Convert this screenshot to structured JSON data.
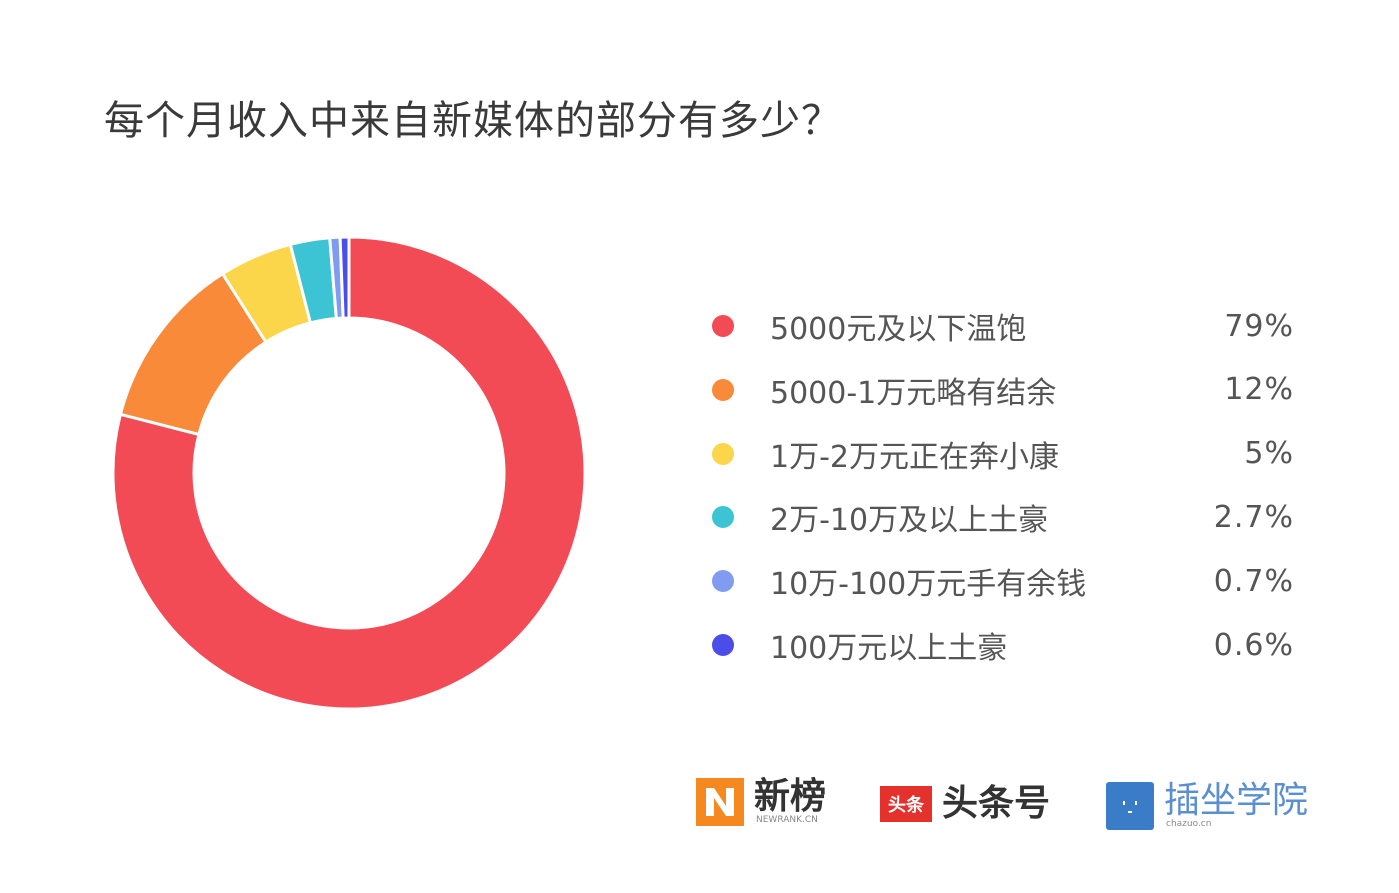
{
  "chart_data": {
    "type": "pie",
    "subtype": "donut",
    "title": "每个月收入中来自新媒体的部分有多少？",
    "legend_placement": "right",
    "slices": [
      {
        "label": "5000元及以下温饱",
        "value": 79,
        "display": "79%",
        "color": "#f24b55"
      },
      {
        "label": "5000-1万元略有结余",
        "value": 12,
        "display": "12%",
        "color": "#f98a3a"
      },
      {
        "label": "1万-2万元正在奔小康",
        "value": 5,
        "display": "5%",
        "color": "#fbd54a"
      },
      {
        "label": "2万-10万及以上土豪",
        "value": 2.7,
        "display": "2.7%",
        "color": "#3cc4d4"
      },
      {
        "label": "10万-100万元手有余钱",
        "value": 0.7,
        "display": "0.7%",
        "color": "#7f9cf0"
      },
      {
        "label": "100万元以上土豪",
        "value": 0.6,
        "display": "0.6%",
        "color": "#4a4de8"
      }
    ]
  },
  "logos": {
    "newrank": {
      "name": "新榜",
      "sub": "NEWRANK.CN",
      "color": "#f5881f"
    },
    "toutiao": {
      "mark": "头条",
      "name": "头条号",
      "color": "#e4312b"
    },
    "chazuo": {
      "name": "插坐学院",
      "sub": "chazuo.cn",
      "color": "#3a7cc8"
    }
  }
}
